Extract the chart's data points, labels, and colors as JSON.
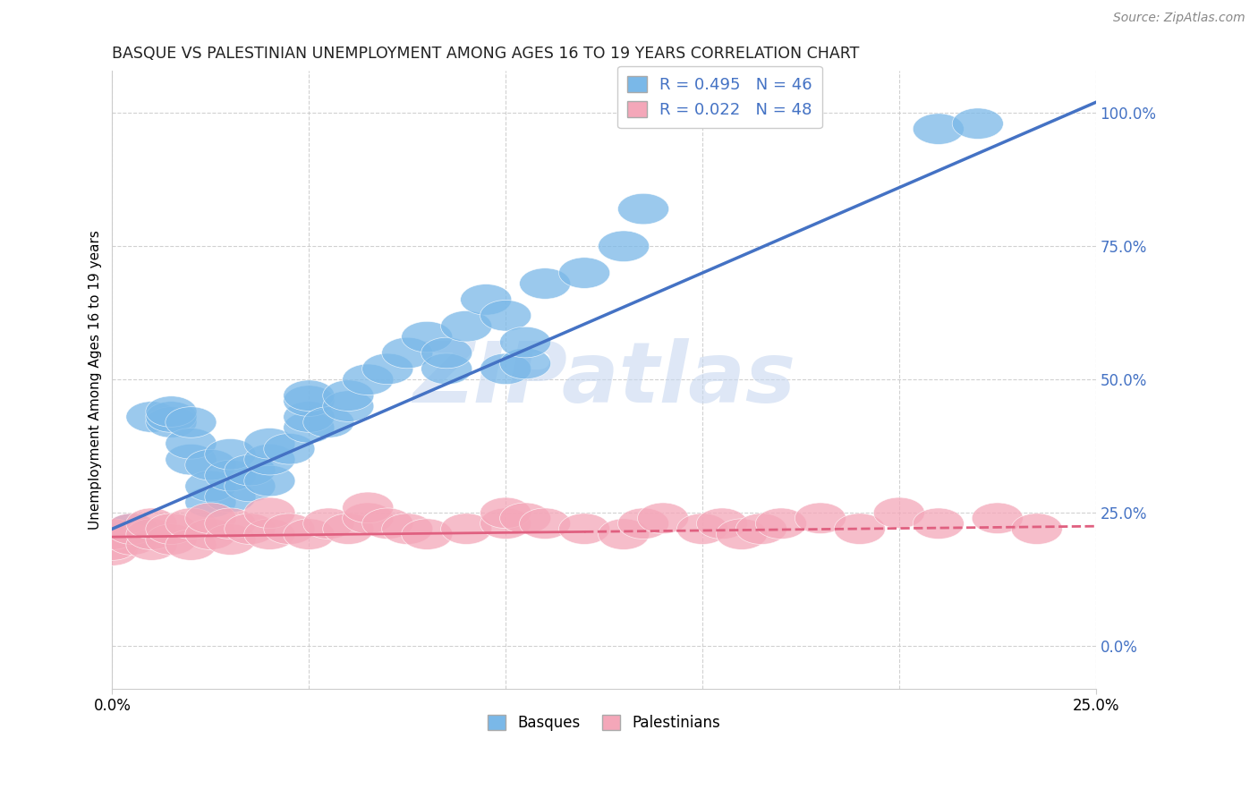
{
  "title": "BASQUE VS PALESTINIAN UNEMPLOYMENT AMONG AGES 16 TO 19 YEARS CORRELATION CHART",
  "source": "Source: ZipAtlas.com",
  "ylabel": "Unemployment Among Ages 16 to 19 years",
  "legend_r1": "R = 0.495",
  "legend_n1": "N = 46",
  "legend_r2": "R = 0.022",
  "legend_n2": "N = 48",
  "legend_label1": "Basques",
  "legend_label2": "Palestinians",
  "color_basque": "#7AB8E8",
  "color_palestinian": "#F4A7B9",
  "color_line_basque": "#4472C4",
  "color_line_pal": "#E06080",
  "color_rn": "#4472C4",
  "watermark_text": "ZIPatlas",
  "watermark_color": "#C8D8F0",
  "bg_color": "#FFFFFF",
  "grid_color": "#CCCCCC",
  "xmin": 0.0,
  "xmax": 0.25,
  "ymin": -0.08,
  "ymax": 1.08,
  "ytick_vals": [
    0.0,
    0.25,
    0.5,
    0.75,
    1.0
  ],
  "ytick_labels": [
    "0.0%",
    "25.0%",
    "50.0%",
    "75.0%",
    "100.0%"
  ],
  "xtick_vals": [
    0.0,
    0.25
  ],
  "xtick_labels": [
    "0.0%",
    "25.0%"
  ],
  "basque_x": [
    0.005,
    0.005,
    0.01,
    0.015,
    0.015,
    0.015,
    0.02,
    0.02,
    0.02,
    0.025,
    0.025,
    0.025,
    0.03,
    0.03,
    0.03,
    0.035,
    0.035,
    0.04,
    0.04,
    0.04,
    0.045,
    0.05,
    0.05,
    0.05,
    0.05,
    0.055,
    0.06,
    0.06,
    0.065,
    0.07,
    0.075,
    0.08,
    0.085,
    0.085,
    0.09,
    0.095,
    0.1,
    0.1,
    0.105,
    0.105,
    0.11,
    0.12,
    0.13,
    0.135,
    0.21,
    0.22
  ],
  "basque_y": [
    0.21,
    0.22,
    0.43,
    0.42,
    0.43,
    0.44,
    0.35,
    0.38,
    0.42,
    0.27,
    0.3,
    0.34,
    0.28,
    0.32,
    0.36,
    0.3,
    0.33,
    0.31,
    0.35,
    0.38,
    0.37,
    0.41,
    0.43,
    0.46,
    0.47,
    0.42,
    0.45,
    0.47,
    0.5,
    0.52,
    0.55,
    0.58,
    0.52,
    0.55,
    0.6,
    0.65,
    0.52,
    0.62,
    0.53,
    0.57,
    0.68,
    0.7,
    0.75,
    0.82,
    0.97,
    0.98
  ],
  "pal_x": [
    0.0,
    0.0,
    0.0,
    0.005,
    0.005,
    0.01,
    0.01,
    0.01,
    0.015,
    0.015,
    0.02,
    0.02,
    0.025,
    0.025,
    0.03,
    0.03,
    0.035,
    0.04,
    0.04,
    0.045,
    0.05,
    0.055,
    0.06,
    0.065,
    0.065,
    0.07,
    0.075,
    0.08,
    0.09,
    0.1,
    0.1,
    0.105,
    0.11,
    0.12,
    0.13,
    0.135,
    0.14,
    0.15,
    0.155,
    0.16,
    0.165,
    0.17,
    0.18,
    0.19,
    0.2,
    0.21,
    0.225,
    0.235
  ],
  "pal_y": [
    0.18,
    0.19,
    0.21,
    0.2,
    0.22,
    0.19,
    0.21,
    0.23,
    0.2,
    0.22,
    0.19,
    0.23,
    0.21,
    0.24,
    0.2,
    0.23,
    0.22,
    0.21,
    0.25,
    0.22,
    0.21,
    0.23,
    0.22,
    0.24,
    0.26,
    0.23,
    0.22,
    0.21,
    0.22,
    0.23,
    0.25,
    0.24,
    0.23,
    0.22,
    0.21,
    0.23,
    0.24,
    0.22,
    0.23,
    0.21,
    0.22,
    0.23,
    0.24,
    0.22,
    0.25,
    0.23,
    0.24,
    0.22
  ],
  "basque_line_x": [
    0.0,
    0.25
  ],
  "basque_line_y": [
    0.22,
    1.02
  ],
  "pal_line_x": [
    0.0,
    0.25
  ],
  "pal_line_y": [
    0.205,
    0.225
  ],
  "pal_line_solid_end": 0.12
}
